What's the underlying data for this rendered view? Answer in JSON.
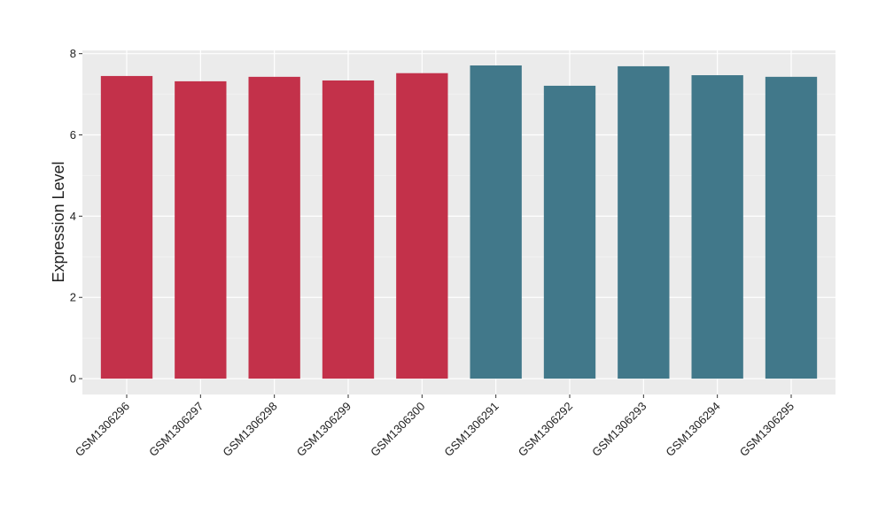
{
  "chart_data": {
    "type": "bar",
    "y_label": "Expression Level",
    "categories": [
      "GSM1306296",
      "GSM1306297",
      "GSM1306298",
      "GSM1306299",
      "GSM1306300",
      "GSM1306291",
      "GSM1306292",
      "GSM1306293",
      "GSM1306294",
      "GSM1306295"
    ],
    "values": [
      7.45,
      7.32,
      7.43,
      7.34,
      7.52,
      7.71,
      7.21,
      7.69,
      7.47,
      7.43
    ],
    "colors": [
      "#c3314a",
      "#c3314a",
      "#c3314a",
      "#c3314a",
      "#c3314a",
      "#41788a",
      "#41788a",
      "#41788a",
      "#41788a",
      "#41788a"
    ],
    "ylim": [
      -0.39,
      8.08
    ],
    "yticks": [
      0,
      2,
      4,
      6,
      8
    ],
    "grid": true
  }
}
